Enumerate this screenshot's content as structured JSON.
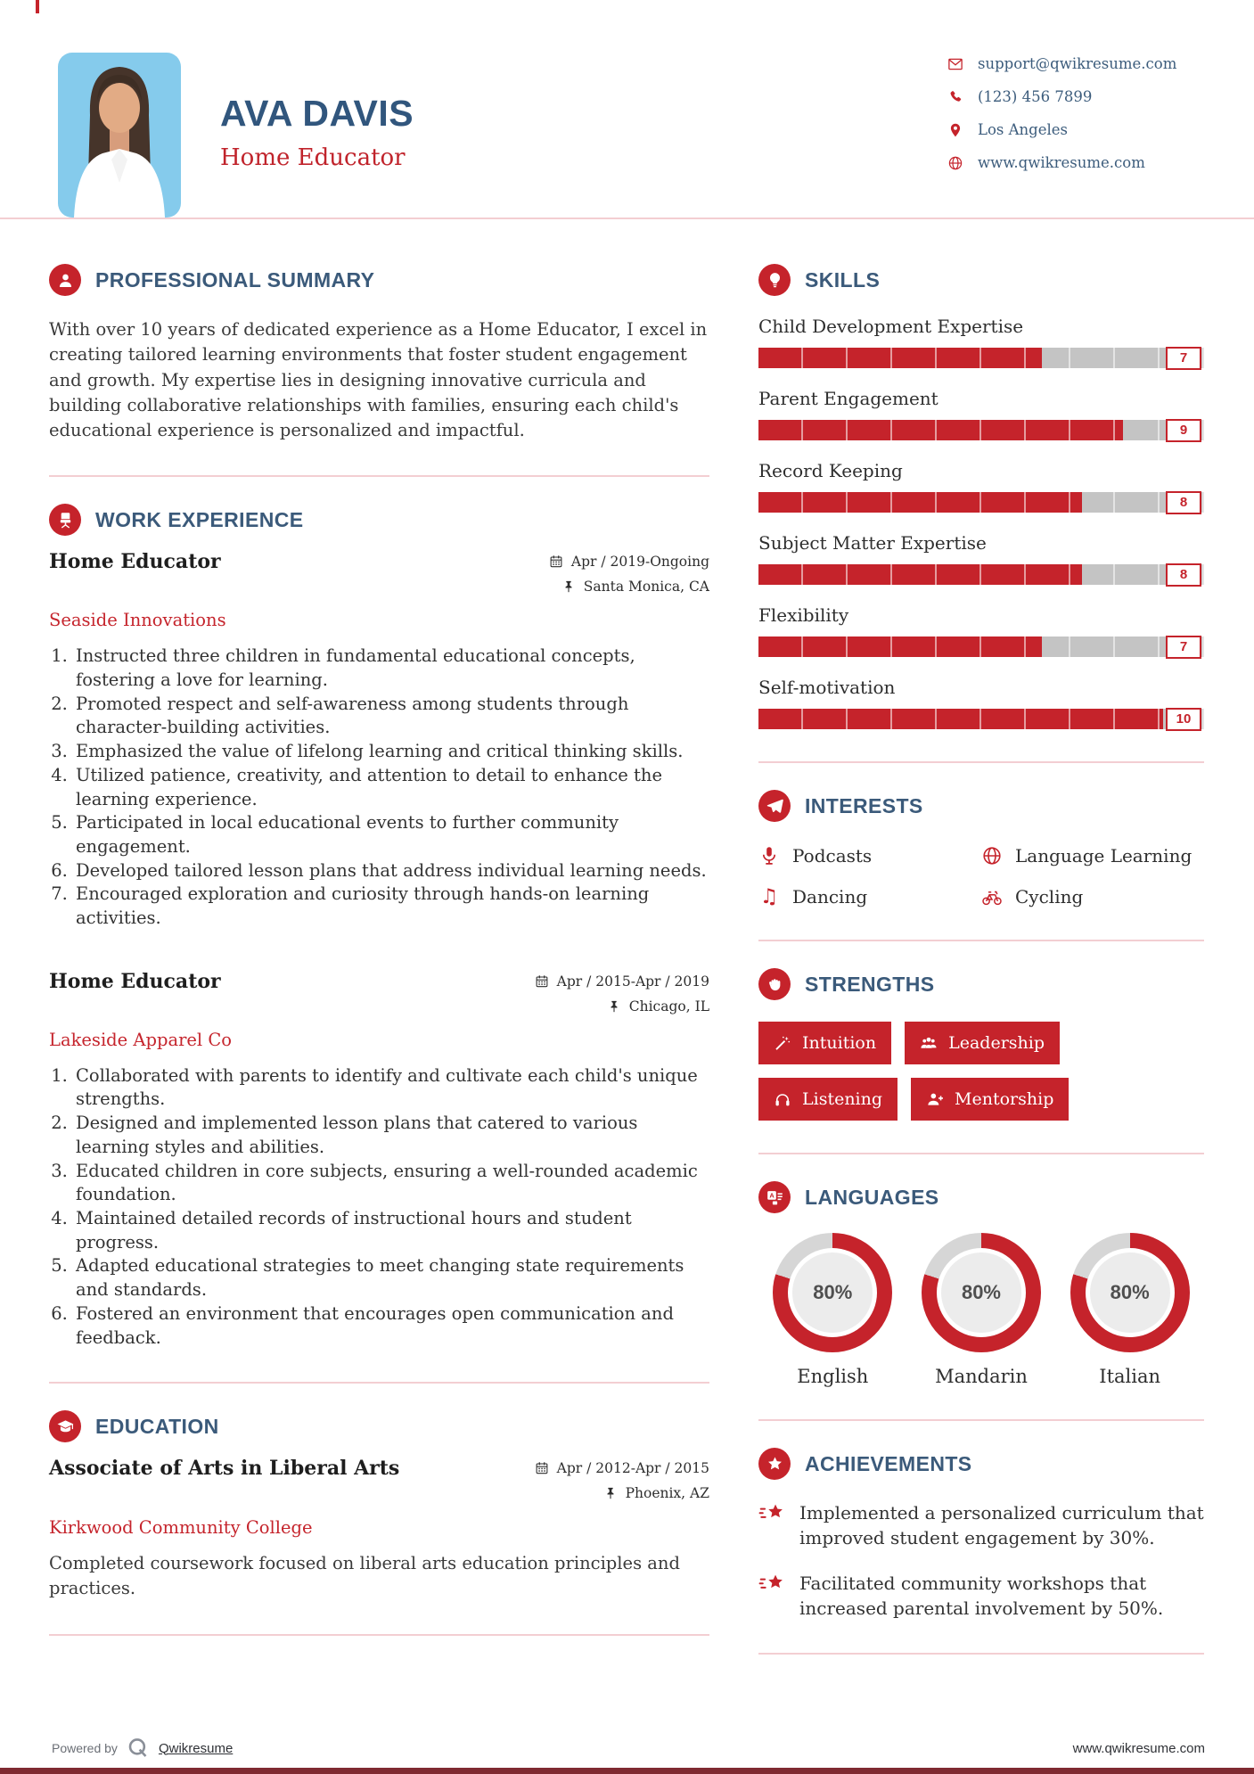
{
  "header": {
    "name": "AVA DAVIS",
    "title": "Home Educator",
    "photo_alt": "profile-photo",
    "contact": [
      {
        "icon": "envelope-icon",
        "text": "support@qwikresume.com"
      },
      {
        "icon": "phone-icon",
        "text": "(123) 456 7899"
      },
      {
        "icon": "map-pin-icon",
        "text": "Los Angeles"
      },
      {
        "icon": "globe-icon",
        "text": "www.qwikresume.com"
      }
    ]
  },
  "summary": {
    "icon": "person-icon",
    "heading": "PROFESSIONAL SUMMARY",
    "text": "With over 10 years of dedicated experience as a Home Educator, I excel in creating tailored learning environments that foster student engagement and growth. My expertise lies in designing innovative curricula and building collaborative relationships with families, ensuring each child's educational experience is personalized and impactful."
  },
  "work": {
    "icon": "office-chair-icon",
    "heading": "WORK EXPERIENCE",
    "jobs": [
      {
        "title": "Home Educator",
        "company": "Seaside Innovations",
        "dates": "Apr / 2019-Ongoing",
        "location": "Santa Monica, CA",
        "bullets": [
          "Instructed three children in fundamental educational concepts, fostering a love for learning.",
          "Promoted respect and self-awareness among students through character-building activities.",
          "Emphasized the value of lifelong learning and critical thinking skills.",
          "Utilized patience, creativity, and attention to detail to enhance the learning experience.",
          "Participated in local educational events to further community engagement.",
          "Developed tailored lesson plans that address individual learning needs.",
          "Encouraged exploration and curiosity through hands-on learning activities."
        ]
      },
      {
        "title": "Home Educator",
        "company": "Lakeside Apparel Co",
        "dates": "Apr / 2015-Apr / 2019",
        "location": "Chicago, IL",
        "bullets": [
          "Collaborated with parents to identify and cultivate each child's unique strengths.",
          "Designed and implemented lesson plans that catered to various learning styles and abilities.",
          "Educated children in core subjects, ensuring a well-rounded academic foundation.",
          "Maintained detailed records of instructional hours and student progress.",
          "Adapted educational strategies to meet changing state requirements and standards.",
          "Fostered an environment that encourages open communication and feedback."
        ]
      }
    ]
  },
  "education": {
    "icon": "graduation-cap-icon",
    "heading": "EDUCATION",
    "degree": "Associate of Arts in Liberal Arts",
    "school": "Kirkwood Community College",
    "dates": "Apr / 2012-Apr / 2015",
    "location": "Phoenix, AZ",
    "description": "Completed coursework focused on liberal arts education principles and practices."
  },
  "skills": {
    "icon": "lightbulb-icon",
    "heading": "SKILLS",
    "max": 10,
    "items": [
      {
        "label": "Child Development Expertise",
        "value": 7
      },
      {
        "label": "Parent Engagement",
        "value": 9
      },
      {
        "label": "Record Keeping",
        "value": 8
      },
      {
        "label": "Subject Matter Expertise",
        "value": 8
      },
      {
        "label": "Flexibility",
        "value": 7
      },
      {
        "label": "Self-motivation",
        "value": 10
      }
    ]
  },
  "interests": {
    "icon": "paper-plane-icon",
    "heading": "INTERESTS",
    "items": [
      {
        "icon": "microphone-icon",
        "label": "Podcasts"
      },
      {
        "icon": "globe-icon",
        "label": "Language Learning"
      },
      {
        "icon": "music-note-icon",
        "label": "Dancing",
        "glyph": "♫"
      },
      {
        "icon": "bicycle-icon",
        "label": "Cycling"
      }
    ]
  },
  "strengths": {
    "icon": "fist-icon",
    "heading": "STRENGTHS",
    "items": [
      {
        "icon": "magic-wand-icon",
        "label": "Intuition"
      },
      {
        "icon": "users-icon",
        "label": "Leadership"
      },
      {
        "icon": "headphones-icon",
        "label": "Listening"
      },
      {
        "icon": "user-plus-icon",
        "label": "Mentorship"
      }
    ]
  },
  "languages": {
    "icon": "translate-icon",
    "heading": "LANGUAGES",
    "items": [
      {
        "label": "English",
        "percent": 80,
        "percent_text": "80%"
      },
      {
        "label": "Mandarin",
        "percent": 80,
        "percent_text": "80%"
      },
      {
        "label": "Italian",
        "percent": 80,
        "percent_text": "80%"
      }
    ]
  },
  "achievements": {
    "icon": "star-badge-icon",
    "heading": "ACHIEVEMENTS",
    "items": [
      "Implemented a personalized curriculum that improved student engagement by 30%.",
      "Facilitated community workshops that increased parental involvement by 50%."
    ]
  },
  "footer": {
    "powered_by": "Powered by",
    "brand": "Qwikresume",
    "website": "www.qwikresume.com"
  },
  "colors": {
    "accent": "#c5232b",
    "heading": "#3b5a7a",
    "name": "#31567d",
    "divider": "#f3ced2",
    "bar_track": "#c4c4c4",
    "donut_track": "#d6d6d6",
    "bottom_bar": "#7f2a31",
    "photo_bg": "#85cbec"
  }
}
